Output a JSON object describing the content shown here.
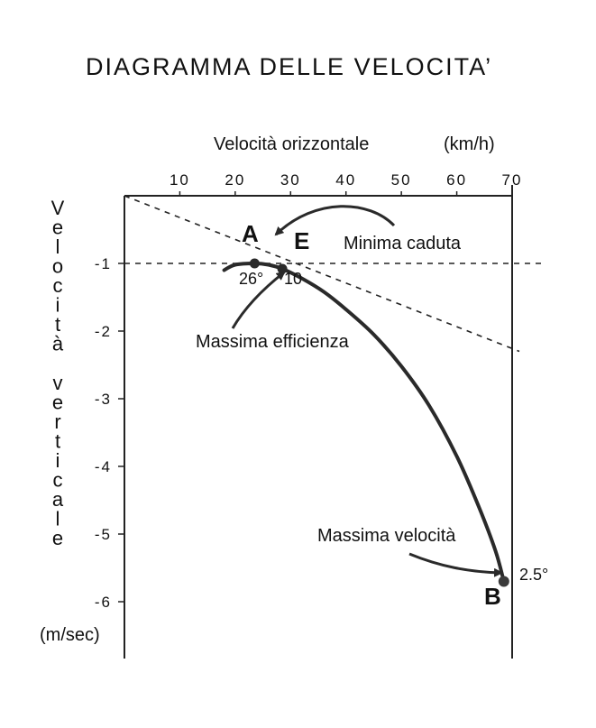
{
  "title": "DIAGRAMMA DELLE VELOCITA’",
  "x_axis": {
    "label": "Velocità orizzontale",
    "unit": "(km/h)",
    "ticks": [
      "10",
      "20",
      "30",
      "40",
      "50",
      "60",
      "70"
    ]
  },
  "y_axis": {
    "label": "Velocità verticale",
    "unit": "(m/sec)",
    "ticks": [
      "-1",
      "-2",
      "-3",
      "-4",
      "-5",
      "-6"
    ]
  },
  "points": {
    "A": {
      "label": "A",
      "angle": "26°"
    },
    "E": {
      "label": "E",
      "angle": "10"
    },
    "B": {
      "label": "B",
      "angle": "2.5°"
    }
  },
  "annotations": {
    "minimum_sink": "Minima caduta",
    "maximum_efficiency": "Massima efficienza",
    "maximum_speed": "Massima velocità"
  },
  "chart_data": {
    "type": "line",
    "title": "DIAGRAMMA DELLE VELOCITA’",
    "xlabel": "Velocità orizzontale (km/h)",
    "ylabel": "Velocità verticale (m/sec)",
    "xlim": [
      0,
      70
    ],
    "ylim": [
      -6.5,
      0
    ],
    "series": [
      {
        "x": [
          18,
          20,
          23.5,
          26,
          28.5,
          32,
          36,
          40,
          45,
          50,
          55,
          60,
          64,
          67,
          68.5
        ],
        "y": [
          -1.1,
          -1.02,
          -1.0,
          -1.02,
          -1.08,
          -1.22,
          -1.42,
          -1.68,
          -2.05,
          -2.52,
          -3.1,
          -3.85,
          -4.6,
          -5.25,
          -5.7
        ]
      }
    ],
    "key_points": [
      {
        "name": "A",
        "x": 23.5,
        "y": -1.0
      },
      {
        "name": "E",
        "x": 28.5,
        "y": -1.08
      },
      {
        "name": "B",
        "x": 68.5,
        "y": -5.7
      }
    ],
    "reference_lines": [
      {
        "style": "dashed",
        "x": [
          0,
          70
        ],
        "y": [
          -1.0,
          -1.0
        ]
      },
      {
        "style": "dashed",
        "x": [
          0,
          70
        ],
        "y": [
          0,
          -2.3
        ]
      }
    ],
    "grid": false
  }
}
